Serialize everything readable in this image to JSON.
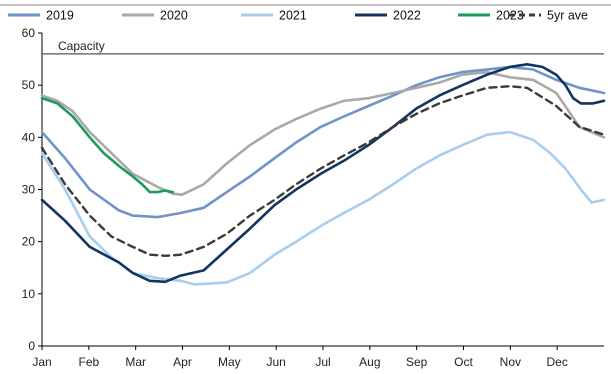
{
  "chart_data": {
    "type": "line",
    "title": "",
    "xlabel": "",
    "ylabel": "",
    "x_ticks": [
      "Jan",
      "Feb",
      "Mar",
      "Apr",
      "May",
      "Jun",
      "Jul",
      "Aug",
      "Sep",
      "Oct",
      "Nov",
      "Dec"
    ],
    "y_ticks": [
      0,
      10,
      20,
      30,
      40,
      50,
      60
    ],
    "ylim": [
      0,
      60
    ],
    "xlim": [
      0,
      365
    ],
    "grid": false,
    "legend": "top",
    "annotations": [
      {
        "label": "Capacity",
        "y": 56
      }
    ],
    "series": [
      {
        "name": "2019",
        "color": "#6e93c8",
        "dashed": false,
        "x": [
          0,
          15,
          31,
          50,
          59,
          75,
          90,
          105,
          120,
          135,
          151,
          165,
          181,
          196,
          212,
          228,
          243,
          258,
          273,
          289,
          304,
          319,
          334,
          349,
          365
        ],
        "y": [
          41,
          36,
          30,
          26,
          25,
          24.7,
          25.5,
          26.5,
          29.5,
          32.5,
          36,
          39,
          42,
          44,
          46,
          48,
          50,
          51.5,
          52.5,
          53,
          53.5,
          53,
          51,
          49.5,
          48.5
        ]
      },
      {
        "name": "2020",
        "color": "#a9a9a9",
        "dashed": false,
        "x": [
          0,
          10,
          20,
          31,
          45,
          59,
          75,
          85,
          91,
          105,
          120,
          135,
          151,
          165,
          181,
          196,
          212,
          228,
          243,
          258,
          273,
          289,
          304,
          319,
          334,
          349,
          365
        ],
        "y": [
          48,
          47,
          45,
          41,
          37,
          33,
          30.5,
          29.2,
          29,
          31,
          35,
          38.5,
          41.5,
          43.5,
          45.5,
          47,
          47.5,
          48.5,
          49.5,
          50.5,
          52,
          52.5,
          51.5,
          51,
          48.5,
          42,
          40
        ]
      },
      {
        "name": "2021",
        "color": "#a8cdee",
        "dashed": false,
        "x": [
          0,
          15,
          31,
          45,
          59,
          75,
          90,
          99,
          110,
          120,
          135,
          151,
          165,
          181,
          196,
          212,
          228,
          243,
          258,
          273,
          289,
          304,
          319,
          330,
          340,
          350,
          357,
          365
        ],
        "y": [
          37,
          30,
          21,
          17,
          14,
          13,
          12.5,
          11.8,
          12,
          12.2,
          14,
          17.5,
          20,
          23,
          25.5,
          28,
          31,
          34,
          36.5,
          38.5,
          40.5,
          41,
          39.5,
          37,
          34,
          30,
          27.5,
          28
        ]
      },
      {
        "name": "2022",
        "color": "#13345e",
        "dashed": false,
        "x": [
          0,
          15,
          31,
          50,
          59,
          70,
          80,
          90,
          105,
          120,
          135,
          151,
          165,
          181,
          196,
          212,
          228,
          243,
          258,
          273,
          289,
          304,
          315,
          325,
          334,
          340,
          345,
          350,
          358,
          365
        ],
        "y": [
          28,
          24,
          19,
          16,
          14,
          12.5,
          12.3,
          13.5,
          14.5,
          18.5,
          22.5,
          27,
          30,
          33,
          35.5,
          38.5,
          42,
          45.5,
          48,
          50,
          52,
          53.5,
          54,
          53.5,
          52,
          50,
          47.5,
          46.5,
          46.5,
          47
        ]
      },
      {
        "name": "2023",
        "color": "#1e9a5a",
        "dashed": false,
        "x": [
          0,
          10,
          20,
          31,
          40,
          50,
          59,
          65,
          70,
          75,
          80,
          85
        ],
        "y": [
          47.5,
          46.5,
          44,
          40,
          37,
          34.5,
          32.5,
          31,
          29.5,
          29.5,
          29.8,
          29.5
        ]
      },
      {
        "name": "5yr ave",
        "color": "#3b3b3b",
        "dashed": true,
        "x": [
          0,
          15,
          31,
          45,
          59,
          70,
          80,
          90,
          105,
          120,
          135,
          151,
          165,
          181,
          196,
          212,
          228,
          243,
          258,
          273,
          289,
          304,
          315,
          334,
          349,
          365
        ],
        "y": [
          38,
          31,
          25,
          21,
          19,
          17.5,
          17.3,
          17.5,
          19,
          21.5,
          25,
          28,
          31,
          34,
          36.5,
          39,
          42,
          44.5,
          46.5,
          48,
          49.5,
          49.8,
          49.5,
          46,
          42,
          40.5
        ]
      }
    ]
  }
}
